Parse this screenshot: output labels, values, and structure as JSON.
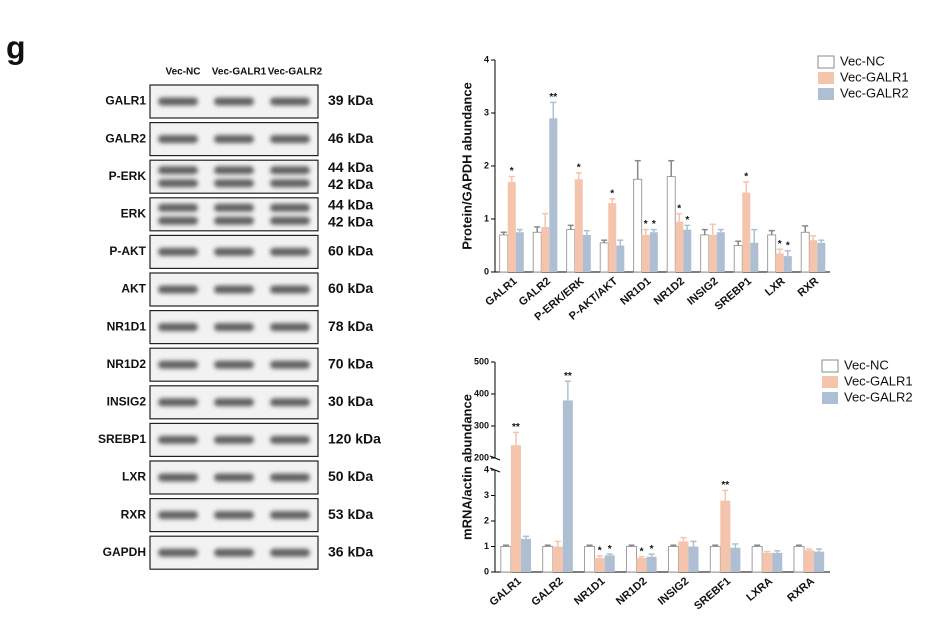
{
  "panel_label": "g",
  "blot": {
    "lanes": [
      "Vec-NC",
      "Vec-GALR1",
      "Vec-GALR2"
    ],
    "rows": [
      {
        "label": "GALR1",
        "sizes": [
          "39 kDa"
        ]
      },
      {
        "label": "GALR2",
        "sizes": [
          "46 kDa"
        ]
      },
      {
        "label": "P-ERK",
        "sizes": [
          "44 kDa",
          "42 kDa"
        ]
      },
      {
        "label": "ERK",
        "sizes": [
          "44 kDa",
          "42 kDa"
        ]
      },
      {
        "label": "P-AKT",
        "sizes": [
          "60 kDa"
        ]
      },
      {
        "label": "AKT",
        "sizes": [
          "60 kDa"
        ]
      },
      {
        "label": "NR1D1",
        "sizes": [
          "78 kDa"
        ]
      },
      {
        "label": "NR1D2",
        "sizes": [
          "70 kDa"
        ]
      },
      {
        "label": "INSIG2",
        "sizes": [
          "30 kDa"
        ]
      },
      {
        "label": "SREBP1",
        "sizes": [
          "120 kDa"
        ]
      },
      {
        "label": "LXR",
        "sizes": [
          "50 kDa"
        ]
      },
      {
        "label": "RXR",
        "sizes": [
          "53 kDa"
        ]
      },
      {
        "label": "GAPDH",
        "sizes": [
          "36 kDa"
        ]
      }
    ]
  },
  "chart_data": [
    {
      "type": "bar",
      "ylabel": "Protein/GAPDH abundance",
      "categories": [
        "GALR1",
        "GALR2",
        "P-ERK/ERK",
        "P-AKT/AKT",
        "NR1D1",
        "NR1D2",
        "INSIG2",
        "SREBP1",
        "LXR",
        "RXR"
      ],
      "ylim": [
        0,
        4
      ],
      "yticks": [
        0,
        1,
        2,
        3,
        4
      ],
      "legend": "top-right",
      "series": [
        {
          "name": "Vec-NC",
          "color": "#ffffff",
          "values": [
            0.7,
            0.75,
            0.8,
            0.55,
            1.75,
            1.8,
            0.7,
            0.5,
            0.7,
            0.75
          ],
          "errors": [
            0.05,
            0.1,
            0.08,
            0.05,
            0.35,
            0.3,
            0.1,
            0.08,
            0.08,
            0.12
          ],
          "significance": [
            null,
            null,
            null,
            null,
            null,
            null,
            null,
            null,
            null,
            null
          ]
        },
        {
          "name": "Vec-GALR1",
          "color": "#f5c4ad",
          "values": [
            1.7,
            0.85,
            1.75,
            1.3,
            0.7,
            0.95,
            0.7,
            1.5,
            0.35,
            0.6
          ],
          "errors": [
            0.1,
            0.25,
            0.12,
            0.08,
            0.1,
            0.15,
            0.2,
            0.2,
            0.08,
            0.08
          ],
          "significance": [
            "*",
            null,
            "*",
            "*",
            "*",
            "*",
            null,
            "*",
            "*",
            null
          ]
        },
        {
          "name": "Vec-GALR2",
          "color": "#aebfd4",
          "values": [
            0.75,
            2.9,
            0.7,
            0.5,
            0.75,
            0.8,
            0.75,
            0.55,
            0.3,
            0.55
          ],
          "errors": [
            0.05,
            0.3,
            0.08,
            0.1,
            0.05,
            0.08,
            0.05,
            0.25,
            0.1,
            0.05
          ],
          "significance": [
            null,
            "**",
            null,
            null,
            "*",
            "*",
            null,
            null,
            "*",
            null
          ]
        }
      ]
    },
    {
      "type": "bar",
      "ylabel": "mRNA/actin abundance",
      "categories": [
        "GALR1",
        "GALR2",
        "NR1D1",
        "NR1D2",
        "INSIG2",
        "SREBF1",
        "LXRA",
        "RXRA"
      ],
      "ylim": [
        0,
        500
      ],
      "ybreak": [
        4,
        200
      ],
      "yticks": [
        0,
        1,
        2,
        3,
        4,
        200,
        300,
        400,
        500
      ],
      "legend": "top-right",
      "series": [
        {
          "name": "Vec-NC",
          "color": "#ffffff",
          "values": [
            1,
            1,
            1,
            1,
            1,
            1,
            1,
            1
          ],
          "errors": [
            0.05,
            0.05,
            0.05,
            0.05,
            0.05,
            0.05,
            0.05,
            0.05
          ],
          "significance": [
            null,
            null,
            null,
            null,
            null,
            null,
            null,
            null
          ]
        },
        {
          "name": "Vec-GALR1",
          "color": "#f5c4ad",
          "values": [
            240,
            1.0,
            0.55,
            0.55,
            1.2,
            2.8,
            0.75,
            0.85
          ],
          "errors": [
            40,
            0.2,
            0.08,
            0.05,
            0.15,
            0.4,
            0.05,
            0.05
          ],
          "significance": [
            "**",
            null,
            "*",
            "*",
            null,
            "**",
            null,
            null
          ]
        },
        {
          "name": "Vec-GALR2",
          "color": "#aebfd4",
          "values": [
            1.3,
            380,
            0.65,
            0.6,
            1.0,
            0.95,
            0.75,
            0.8
          ],
          "errors": [
            0.1,
            60,
            0.05,
            0.1,
            0.2,
            0.15,
            0.08,
            0.1
          ],
          "significance": [
            null,
            "**",
            "*",
            "*",
            null,
            null,
            null,
            null
          ]
        }
      ]
    }
  ]
}
